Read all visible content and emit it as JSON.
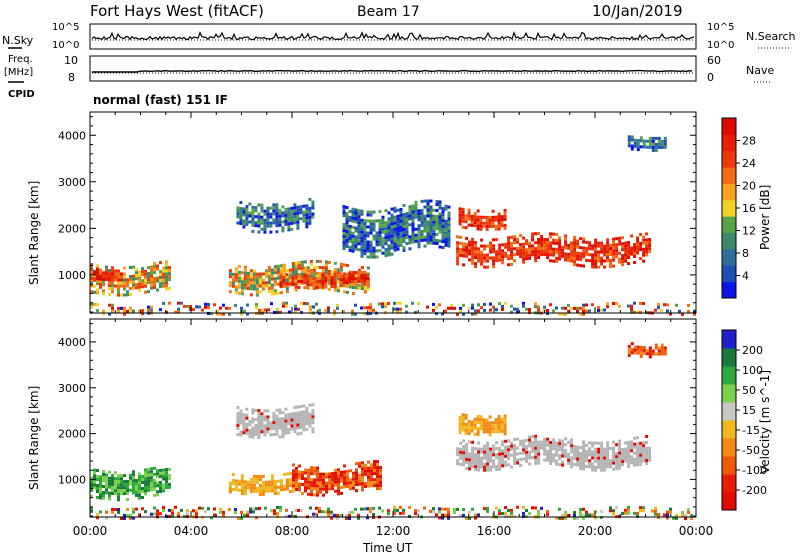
{
  "header": {
    "site": "Fort Hays West (fitACF)",
    "beam": "Beam 17",
    "date": "10/Jan/2019"
  },
  "strip_labels": {
    "nsky": "N.Sky",
    "nsearch": "N.Search",
    "freq": "Freq.",
    "freq_unit": "[MHz]",
    "cpid": "CPID",
    "nave": "Nave",
    "cpid_value": "normal (fast) 151 IF"
  },
  "strip_ticks": {
    "noise_left_top": "10^5",
    "noise_left_bottom": "10^0",
    "noise_right_top": "10^5",
    "noise_right_bottom": "10^0",
    "freq_left_top": "10",
    "freq_left_bottom": "8",
    "nave_right_top": "60",
    "nave_right_bottom": "0"
  },
  "colors": {
    "power_scale": [
      "#0a14e6",
      "#1e50b4",
      "#2e6f9a",
      "#3d8a6a",
      "#5aa24a",
      "#f0d22a",
      "#f5a21e",
      "#f06d14",
      "#eb3a0a",
      "#e61e05",
      "#dc0a00"
    ],
    "velocity_scale": [
      "#2020c8",
      "#1a7a3a",
      "#2ea83c",
      "#7bd24a",
      "#c8c8c0",
      "#f0b81e",
      "#f08a14",
      "#ef5a0a",
      "#e61e05",
      "#e00a00"
    ],
    "ground_scatter": "#b4b4b4"
  },
  "chart_data": [
    {
      "type": "heatmap",
      "name": "power",
      "ylabel": "Slant Range [km]",
      "xlabel": "",
      "x_ticks": [
        "00:00",
        "04:00",
        "08:00",
        "12:00",
        "16:00",
        "20:00",
        "00:00"
      ],
      "y_ticks": [
        "1000",
        "2000",
        "3000",
        "4000"
      ],
      "ylim": [
        180,
        4500
      ],
      "xlim_hours": [
        0,
        24
      ],
      "colorbar": {
        "label": "Power [dB]",
        "ticks": [
          "4",
          "8",
          "12",
          "16",
          "20",
          "24",
          "28"
        ],
        "range": [
          0,
          30
        ]
      },
      "regions": [
        {
          "x": [
            0.0,
            3.2
          ],
          "y": [
            650,
            1250
          ],
          "level": "mid"
        },
        {
          "x": [
            0.0,
            1.2
          ],
          "y": [
            850,
            1150
          ],
          "level": "high"
        },
        {
          "x": [
            5.5,
            11.0
          ],
          "y": [
            650,
            1250
          ],
          "level": "mid"
        },
        {
          "x": [
            7.5,
            11.0
          ],
          "y": [
            750,
            1050
          ],
          "level": "high"
        },
        {
          "x": [
            5.8,
            8.8
          ],
          "y": [
            2000,
            2600
          ],
          "level": "low"
        },
        {
          "x": [
            10.0,
            14.2
          ],
          "y": [
            1500,
            2500
          ],
          "level": "low"
        },
        {
          "x": [
            14.6,
            16.4
          ],
          "y": [
            2000,
            2450
          ],
          "level": "high"
        },
        {
          "x": [
            14.5,
            22.2
          ],
          "y": [
            1250,
            1850
          ],
          "level": "high"
        },
        {
          "x": [
            0.0,
            24.0
          ],
          "y": [
            200,
            400
          ],
          "level": "mixed"
        },
        {
          "x": [
            21.3,
            22.8
          ],
          "y": [
            3700,
            4000
          ],
          "level": "low"
        }
      ]
    },
    {
      "type": "heatmap",
      "name": "velocity",
      "ylabel": "Slant Range [km]",
      "xlabel": "Time UT",
      "x_ticks": [
        "00:00",
        "04:00",
        "08:00",
        "12:00",
        "16:00",
        "20:00",
        "00:00"
      ],
      "y_ticks": [
        "1000",
        "2000",
        "3000",
        "4000"
      ],
      "ylim": [
        180,
        4500
      ],
      "xlim_hours": [
        0,
        24
      ],
      "colorbar": {
        "label": "Velocity [m s^-1]",
        "ticks": [
          "200",
          "100",
          "50",
          "15",
          "-15",
          "-50",
          "-100",
          "-200"
        ],
        "range": [
          -250,
          250
        ]
      },
      "regions": [
        {
          "x": [
            0.0,
            3.2
          ],
          "y": [
            650,
            1250
          ],
          "level": "positive"
        },
        {
          "x": [
            5.5,
            8.0
          ],
          "y": [
            700,
            1150
          ],
          "level": "negative"
        },
        {
          "x": [
            8.0,
            11.5
          ],
          "y": [
            750,
            1350
          ],
          "level": "negative_strong"
        },
        {
          "x": [
            5.8,
            8.8
          ],
          "y": [
            2000,
            2600
          ],
          "level": "ground"
        },
        {
          "x": [
            14.5,
            22.2
          ],
          "y": [
            1250,
            1900
          ],
          "level": "ground"
        },
        {
          "x": [
            14.6,
            16.4
          ],
          "y": [
            2000,
            2450
          ],
          "level": "negative"
        },
        {
          "x": [
            0.0,
            24.0
          ],
          "y": [
            200,
            400
          ],
          "level": "mixed"
        },
        {
          "x": [
            21.3,
            22.8
          ],
          "y": [
            3700,
            4000
          ],
          "level": "negative_strong"
        }
      ]
    }
  ]
}
